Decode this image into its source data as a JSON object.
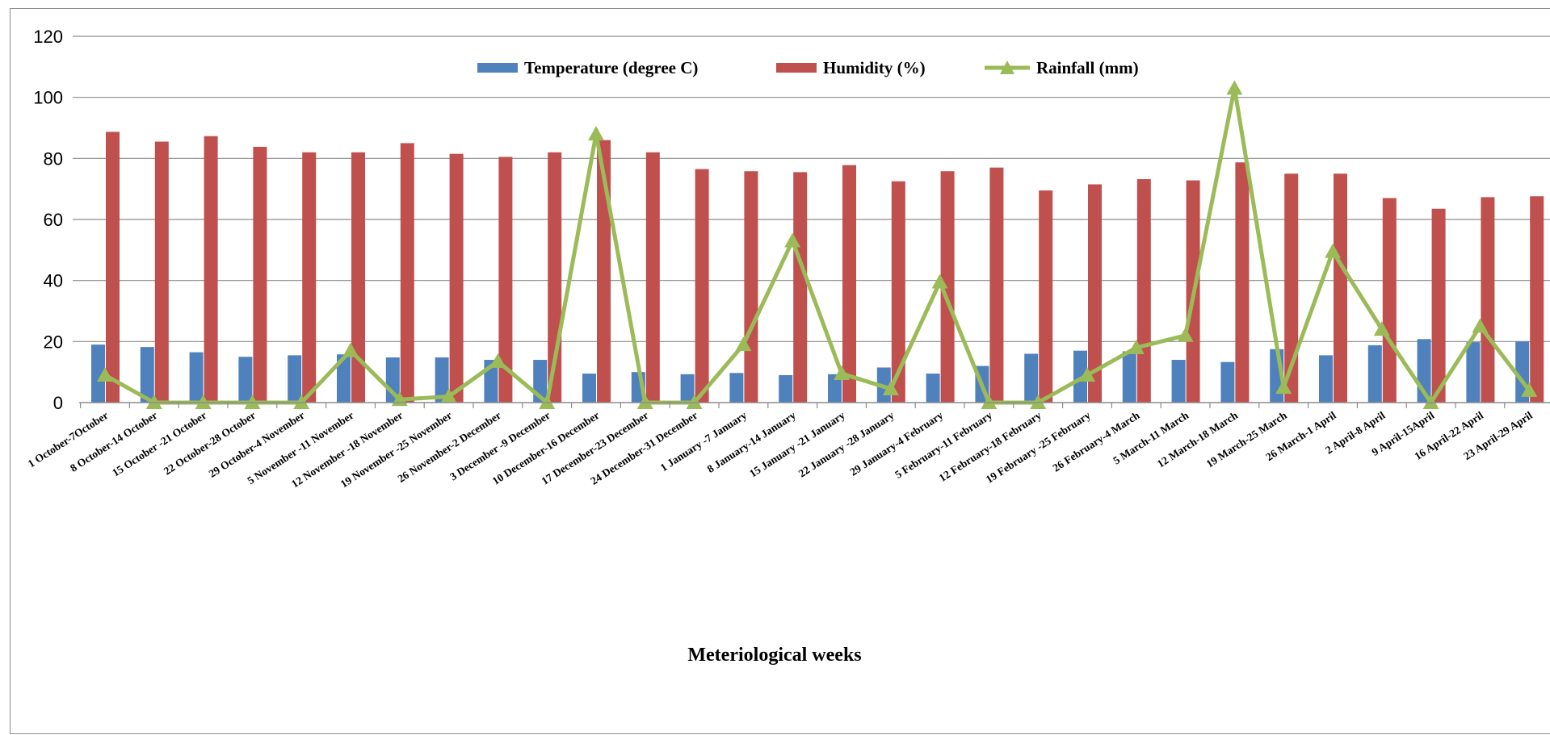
{
  "chart_data": {
    "type": "bar",
    "xlabel": "Meteriological weeks",
    "ylabel": "",
    "ylim": [
      0,
      120
    ],
    "yticks": [
      0,
      20,
      40,
      60,
      80,
      100,
      120
    ],
    "grid": true,
    "legend_position": "top",
    "categories": [
      "1 October-7October",
      "8 October-14 October",
      "15 October -21 October",
      "22 October-28 October",
      "29 October-4 November",
      "5 November -11 November",
      "12 November -18 November",
      "19 November -25 November",
      "26 November-2 December",
      "3 December -9 December",
      "10 December-16 December",
      "17 December-23 December",
      "24 December-31 December",
      "1 January -7 January",
      "8 January-14 January",
      "15 January -21 January",
      "22 January -28 January",
      "29 January-4 February",
      "5 February-11 February",
      "12 February-18 February",
      "19 February -25 February",
      "26 February-4 March",
      "5 March-11 March",
      "12 March-18 March",
      "19 March-25 March",
      "26 March-1 April",
      "2 April-8 April",
      "9 April-15April",
      "16 April-22 April",
      "23 April-29 April"
    ],
    "series": [
      {
        "name": "Temperature (degree C)",
        "kind": "bar",
        "color": "#4f81bd",
        "values": [
          19,
          18.2,
          16.5,
          15,
          15.5,
          15.8,
          14.8,
          14.8,
          14,
          14,
          9.5,
          10,
          9.3,
          9.7,
          9,
          9.3,
          11.5,
          9.5,
          12,
          16,
          17,
          16.8,
          14,
          13.3,
          17.5,
          15.5,
          18.8,
          20.8,
          19.8,
          20
        ]
      },
      {
        "name": "Humidity (%)",
        "kind": "bar",
        "color": "#c0504d",
        "values": [
          88.7,
          85.5,
          87.3,
          83.8,
          82,
          82,
          85,
          81.5,
          80.5,
          82,
          86,
          82,
          76.5,
          75.8,
          75.5,
          77.8,
          72.5,
          75.8,
          77,
          69.5,
          71.5,
          73.2,
          72.8,
          78.7,
          75,
          75,
          67,
          63.5,
          67.3,
          67.6
        ]
      },
      {
        "name": "Rainfall (mm)",
        "kind": "line",
        "color": "#9bbb59",
        "values": [
          9,
          0,
          0,
          0,
          0,
          17,
          1,
          2,
          13.5,
          0,
          88,
          0,
          0,
          19,
          53,
          9.5,
          4.5,
          39.5,
          0,
          0,
          9,
          18,
          22,
          103,
          5,
          49.5,
          24,
          0,
          25,
          4
        ]
      }
    ]
  }
}
